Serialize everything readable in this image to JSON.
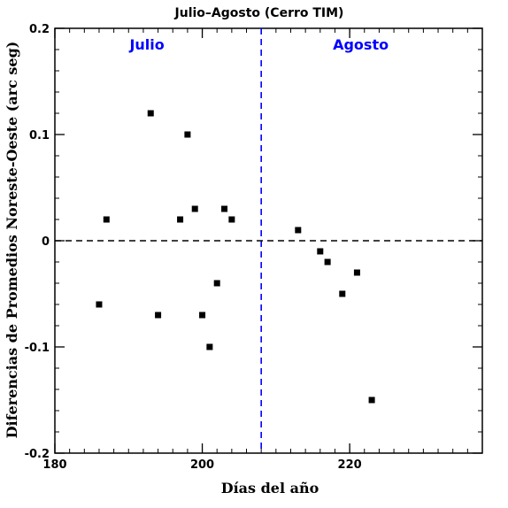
{
  "chart_data": {
    "type": "scatter",
    "title": "Julio–Agosto (Cerro TIM)",
    "xlabel": "Días del año",
    "ylabel": "Diferencias de Promedios Noreste-Oeste (arc seg)",
    "xlim": [
      180,
      238
    ],
    "ylim": [
      -0.2,
      0.2
    ],
    "x_ticks": [
      180,
      200,
      220
    ],
    "x_tick_labels": [
      "180",
      "200",
      "220"
    ],
    "y_ticks": [
      -0.2,
      -0.1,
      0,
      0.1,
      0.2
    ],
    "y_tick_labels": [
      "-0.2",
      "-0.1",
      "0",
      "0.1",
      "0.2"
    ],
    "x_minor_step": 2,
    "y_minor_step": 0.02,
    "grid": false,
    "reference_lines": [
      {
        "orientation": "vertical",
        "value": 208,
        "style": "dashed",
        "color": "#0000ff"
      },
      {
        "orientation": "horizontal",
        "value": 0,
        "style": "dashed",
        "color": "#000000"
      }
    ],
    "region_labels": [
      {
        "text": "Julio",
        "x": 192.5,
        "y": 0.185,
        "color": "#0000ff"
      },
      {
        "text": "Agosto",
        "x": 221.5,
        "y": 0.185,
        "color": "#0000ff"
      }
    ],
    "series": [
      {
        "marker": "square",
        "color": "#000000",
        "points": [
          {
            "x": 186,
            "y": -0.06
          },
          {
            "x": 187,
            "y": 0.02
          },
          {
            "x": 193,
            "y": 0.12
          },
          {
            "x": 194,
            "y": -0.07
          },
          {
            "x": 197,
            "y": 0.02
          },
          {
            "x": 198,
            "y": 0.1
          },
          {
            "x": 199,
            "y": 0.03
          },
          {
            "x": 200,
            "y": -0.07
          },
          {
            "x": 201,
            "y": -0.1
          },
          {
            "x": 202,
            "y": -0.04
          },
          {
            "x": 203,
            "y": 0.03
          },
          {
            "x": 204,
            "y": 0.02
          },
          {
            "x": 213,
            "y": 0.01
          },
          {
            "x": 216,
            "y": -0.01
          },
          {
            "x": 217,
            "y": -0.02
          },
          {
            "x": 219,
            "y": -0.05
          },
          {
            "x": 221,
            "y": -0.03
          },
          {
            "x": 223,
            "y": -0.15
          }
        ]
      }
    ]
  }
}
